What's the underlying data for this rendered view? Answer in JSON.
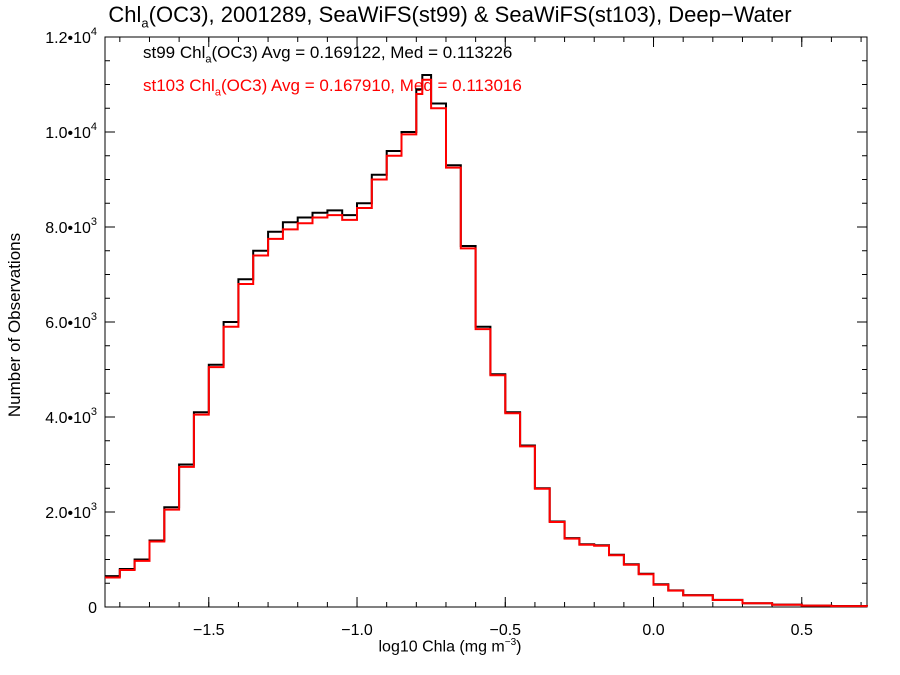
{
  "title": {
    "prefix": "Chl",
    "sub": "a",
    "rest": "(OC3), 2001289, SeaWiFS(st99) & SeaWiFS(st103), Deep−Water"
  },
  "legend": [
    {
      "label_prefix": "st99 Chl",
      "label_sub": "a",
      "label_rest": "(OC3) Avg = 0.169122, Med = 0.113226",
      "color": "#000000"
    },
    {
      "label_prefix": "st103 Chl",
      "label_sub": "a",
      "label_rest": "(OC3) Avg = 0.167910, Med = 0.113016",
      "color": "#ff0000"
    }
  ],
  "xlabel": {
    "text": "log10 Chla (mg m",
    "sup": "−3",
    "close": ")"
  },
  "ylabel": "Number of Observations",
  "chart_data": {
    "type": "line",
    "style": "step-histogram",
    "xlim": [
      -1.85,
      0.72
    ],
    "ylim": [
      0,
      12000
    ],
    "x_ticks": [
      {
        "value": -1.5,
        "label": "−1.5"
      },
      {
        "value": -1.0,
        "label": "−1.0"
      },
      {
        "value": -0.5,
        "label": "−0.5"
      },
      {
        "value": 0.0,
        "label": "0.0"
      },
      {
        "value": 0.5,
        "label": "0.5"
      }
    ],
    "y_ticks": [
      {
        "value": 0,
        "label": "0",
        "exp": ""
      },
      {
        "value": 2000,
        "label": "2.0•10",
        "exp": "3"
      },
      {
        "value": 4000,
        "label": "4.0•10",
        "exp": "3"
      },
      {
        "value": 6000,
        "label": "6.0•10",
        "exp": "3"
      },
      {
        "value": 8000,
        "label": "8.0•10",
        "exp": "3"
      },
      {
        "value": 10000,
        "label": "1.0•10",
        "exp": "4"
      },
      {
        "value": 12000,
        "label": "1.2•10",
        "exp": "4"
      }
    ],
    "x_minor_step": 0.1,
    "y_minor_step": 500,
    "x": [
      -1.85,
      -1.8,
      -1.75,
      -1.7,
      -1.65,
      -1.6,
      -1.55,
      -1.5,
      -1.45,
      -1.4,
      -1.35,
      -1.3,
      -1.25,
      -1.2,
      -1.15,
      -1.1,
      -1.05,
      -1.0,
      -0.95,
      -0.9,
      -0.85,
      -0.8,
      -0.78,
      -0.75,
      -0.7,
      -0.65,
      -0.6,
      -0.55,
      -0.5,
      -0.45,
      -0.4,
      -0.35,
      -0.3,
      -0.25,
      -0.2,
      -0.15,
      -0.1,
      -0.05,
      0.0,
      0.05,
      0.1,
      0.2,
      0.3,
      0.4,
      0.5,
      0.6,
      0.72
    ],
    "series": [
      {
        "name": "st99",
        "color": "#000000",
        "values": [
          650,
          800,
          1000,
          1400,
          2100,
          3000,
          4100,
          5100,
          6000,
          6900,
          7500,
          7900,
          8100,
          8200,
          8300,
          8350,
          8250,
          8500,
          9100,
          9600,
          10000,
          10900,
          11200,
          10600,
          9300,
          7600,
          5900,
          4900,
          4100,
          3400,
          2500,
          1800,
          1450,
          1320,
          1300,
          1100,
          900,
          700,
          480,
          350,
          250,
          150,
          80,
          50,
          30,
          20,
          10
        ]
      },
      {
        "name": "st103",
        "color": "#ff0000",
        "values": [
          620,
          780,
          970,
          1380,
          2050,
          2950,
          4050,
          5050,
          5900,
          6800,
          7400,
          7750,
          7950,
          8080,
          8200,
          8250,
          8150,
          8400,
          9000,
          9500,
          9950,
          10800,
          11100,
          10500,
          9250,
          7550,
          5850,
          4880,
          4080,
          3380,
          2490,
          1790,
          1440,
          1310,
          1290,
          1090,
          890,
          690,
          470,
          345,
          245,
          148,
          78,
          49,
          29,
          19,
          10
        ]
      }
    ]
  }
}
